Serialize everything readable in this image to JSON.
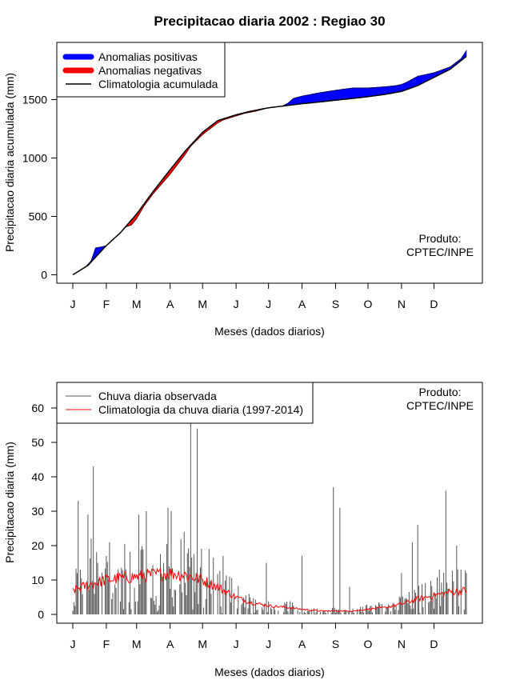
{
  "chart_data": [
    {
      "type": "area",
      "title": "Precipitacao diaria 2002 : Regiao 30",
      "xlabel": "Meses (dados diarios)",
      "ylabel": "Precipitacao diaria acumulada (mm)",
      "ylim": [
        0,
        1950
      ],
      "yticks": [
        0,
        500,
        1000,
        1500
      ],
      "xlim_day": [
        1,
        365
      ],
      "month_labels": [
        "J",
        "F",
        "M",
        "A",
        "M",
        "J",
        "J",
        "A",
        "S",
        "O",
        "N",
        "D"
      ],
      "month_start_days": [
        1,
        32,
        60,
        91,
        121,
        152,
        182,
        213,
        244,
        274,
        305,
        335
      ],
      "legend": {
        "position": "top-left",
        "entries": [
          {
            "label": "Anomalias positivas",
            "color": "#0000FF"
          },
          {
            "label": "Anomalias negativas",
            "color": "#FF0000"
          },
          {
            "label": "Climatologia acumulada",
            "color": "#000000"
          }
        ]
      },
      "credit": [
        "Produto:",
        "CPTEC/INPE"
      ],
      "climatology_cumulative": {
        "day": [
          1,
          15,
          32,
          45,
          60,
          75,
          91,
          105,
          121,
          135,
          152,
          165,
          182,
          200,
          213,
          230,
          244,
          260,
          274,
          290,
          305,
          320,
          335,
          350,
          365
        ],
        "value": [
          0,
          80,
          250,
          360,
          520,
          710,
          900,
          1060,
          1220,
          1320,
          1370,
          1400,
          1430,
          1450,
          1465,
          1480,
          1495,
          1510,
          1525,
          1545,
          1570,
          1620,
          1690,
          1760,
          1870
        ]
      },
      "observed_cumulative": {
        "day": [
          1,
          12,
          18,
          22,
          28,
          32,
          45,
          50,
          55,
          60,
          67,
          75,
          91,
          105,
          110,
          121,
          135,
          140,
          152,
          160,
          170,
          180,
          195,
          200,
          205,
          213,
          230,
          244,
          260,
          274,
          290,
          300,
          305,
          310,
          320,
          335,
          350,
          360,
          365
        ],
        "value": [
          0,
          60,
          120,
          230,
          240,
          250,
          360,
          410,
          425,
          480,
          590,
          690,
          860,
          1030,
          1100,
          1200,
          1300,
          1325,
          1360,
          1382,
          1400,
          1425,
          1445,
          1470,
          1510,
          1530,
          1560,
          1580,
          1600,
          1600,
          1610,
          1620,
          1630,
          1650,
          1700,
          1730,
          1780,
          1850,
          1920
        ]
      },
      "colors": {
        "positive": "#0000FF",
        "negative": "#FF0000",
        "climatology": "#000000"
      }
    },
    {
      "type": "bar",
      "xlabel": "Meses (dados diarios)",
      "ylabel": "Precipitacao diaria (mm)",
      "ylim": [
        0,
        67
      ],
      "yticks": [
        0,
        10,
        20,
        30,
        40,
        50,
        60
      ],
      "month_labels": [
        "J",
        "F",
        "M",
        "A",
        "M",
        "J",
        "J",
        "A",
        "S",
        "O",
        "N",
        "D"
      ],
      "legend": {
        "position": "top-left",
        "entries": [
          {
            "label": "Chuva diaria observada",
            "color": "#555555"
          },
          {
            "label": "Climatologia da chuva diaria (1997-2014)",
            "color": "#FF0000"
          }
        ]
      },
      "credit": [
        "Produto:",
        "CPTEC/INPE"
      ],
      "notable_observed_peaks": [
        {
          "day": 5,
          "value": 12
        },
        {
          "day": 6,
          "value": 33
        },
        {
          "day": 15,
          "value": 29
        },
        {
          "day": 18,
          "value": 22
        },
        {
          "day": 20,
          "value": 43
        },
        {
          "day": 32,
          "value": 17
        },
        {
          "day": 35,
          "value": 21
        },
        {
          "day": 62,
          "value": 29
        },
        {
          "day": 69,
          "value": 30
        },
        {
          "day": 89,
          "value": 31
        },
        {
          "day": 92,
          "value": 30
        },
        {
          "day": 104,
          "value": 24
        },
        {
          "day": 110,
          "value": 57
        },
        {
          "day": 116,
          "value": 54
        },
        {
          "day": 127,
          "value": 19
        },
        {
          "day": 140,
          "value": 17
        },
        {
          "day": 180,
          "value": 15
        },
        {
          "day": 213,
          "value": 17
        },
        {
          "day": 242,
          "value": 37
        },
        {
          "day": 248,
          "value": 31
        },
        {
          "day": 257,
          "value": 8
        },
        {
          "day": 305,
          "value": 12
        },
        {
          "day": 315,
          "value": 21
        },
        {
          "day": 320,
          "value": 26
        },
        {
          "day": 340,
          "value": 13
        },
        {
          "day": 346,
          "value": 36
        },
        {
          "day": 356,
          "value": 20
        },
        {
          "day": 360,
          "value": 13
        },
        {
          "day": 365,
          "value": 12
        }
      ],
      "climatology_daily": {
        "day": [
          1,
          10,
          20,
          32,
          45,
          60,
          75,
          91,
          105,
          121,
          135,
          152,
          165,
          182,
          200,
          213,
          230,
          244,
          260,
          274,
          290,
          305,
          320,
          335,
          350,
          365
        ],
        "value": [
          7,
          8,
          9,
          10,
          10.5,
          11,
          11.5,
          12,
          11.5,
          10,
          8,
          5,
          3.5,
          2.5,
          2,
          1.5,
          1,
          1,
          1,
          1.5,
          2,
          3,
          4.5,
          5.5,
          6.5,
          7
        ]
      }
    }
  ]
}
